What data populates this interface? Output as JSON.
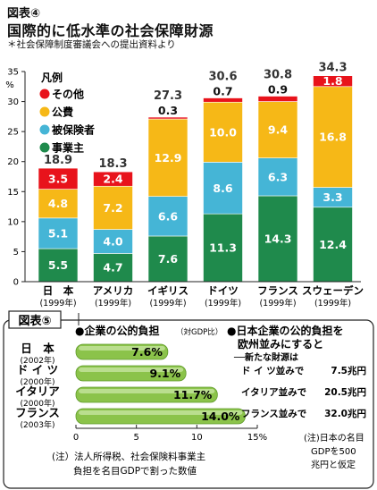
{
  "figure4": {
    "tag": "図表④",
    "title": "国際的に低水準の社会保障財源",
    "source": "＊社会保障制度審議会への提出資料より",
    "chart_data": {
      "type": "bar",
      "stacked": true,
      "y_unit": "%",
      "ylim": [
        0,
        35
      ],
      "yticks": [
        0,
        5,
        10,
        15,
        20,
        25,
        30,
        35
      ],
      "categories": [
        {
          "name": "日　本",
          "year": "(1999年)",
          "total": "18.9"
        },
        {
          "name": "アメリカ",
          "year": "(1999年)",
          "total": "18.3"
        },
        {
          "name": "イギリス",
          "year": "(1999年)",
          "total": "27.3"
        },
        {
          "name": "ドイツ",
          "year": "(1999年)",
          "total": "30.6"
        },
        {
          "name": "フランス",
          "year": "(1999年)",
          "total": "30.8"
        },
        {
          "name": "スウェーデン",
          "year": "(1999年)",
          "total": "34.3"
        }
      ],
      "legend_title": "凡例",
      "series": [
        {
          "name": "事業主",
          "color": "#1f8a4c",
          "values": [
            5.5,
            4.7,
            7.6,
            11.3,
            14.3,
            12.4
          ]
        },
        {
          "name": "被保険者",
          "color": "#45b5d6",
          "values": [
            5.1,
            4.0,
            6.6,
            8.6,
            6.3,
            3.3
          ]
        },
        {
          "name": "公費",
          "color": "#f6b817",
          "values": [
            4.8,
            7.2,
            12.9,
            10.0,
            9.4,
            16.8
          ]
        },
        {
          "name": "その他",
          "color": "#e8131b",
          "values": [
            3.5,
            2.4,
            0.3,
            0.7,
            0.9,
            1.8
          ]
        }
      ],
      "legend_order": [
        "その他",
        "公費",
        "被保険者",
        "事業主"
      ]
    }
  },
  "figure5": {
    "tag": "図表⑤",
    "heading_left": "●企業の公的負担",
    "heading_left_note": "（対GDP比）",
    "heading_right_line1": "●日本企業の公的負担を",
    "heading_right_line2": "欧州並みにすると",
    "heading_right_sub": "──新たな財源は",
    "chart_data": {
      "type": "bar",
      "orientation": "horizontal",
      "xlim": [
        0,
        15
      ],
      "xticks": [
        "0",
        "5",
        "10",
        "15%"
      ],
      "bar_color": "#8bc34a",
      "rows": [
        {
          "country": "日　本",
          "year": "(2002年)",
          "value": 7.6,
          "label": "7.6%"
        },
        {
          "country": "ド イ ツ",
          "year": "(2000年)",
          "value": 9.1,
          "label": "9.1%"
        },
        {
          "country": "イタリア",
          "year": "(2000年)",
          "value": 11.7,
          "label": "11.7%"
        },
        {
          "country": "フランス",
          "year": "(2003年)",
          "value": 14.0,
          "label": "14.0%"
        }
      ]
    },
    "new_funds": [
      {
        "label": "ド イ ツ並みで",
        "amount": "7.5兆円"
      },
      {
        "label": "イタリア並みで",
        "amount": "20.5兆円"
      },
      {
        "label": "フランス並みで",
        "amount": "32.0兆円"
      }
    ],
    "note_left_line1": "(注）法人所得税、社会保険料事業主",
    "note_left_line2": "負担を名目GDPで割った数値",
    "note_right_line1": "(注)日本の名目",
    "note_right_line2": "GDPを500",
    "note_right_line3": "兆円と仮定"
  }
}
